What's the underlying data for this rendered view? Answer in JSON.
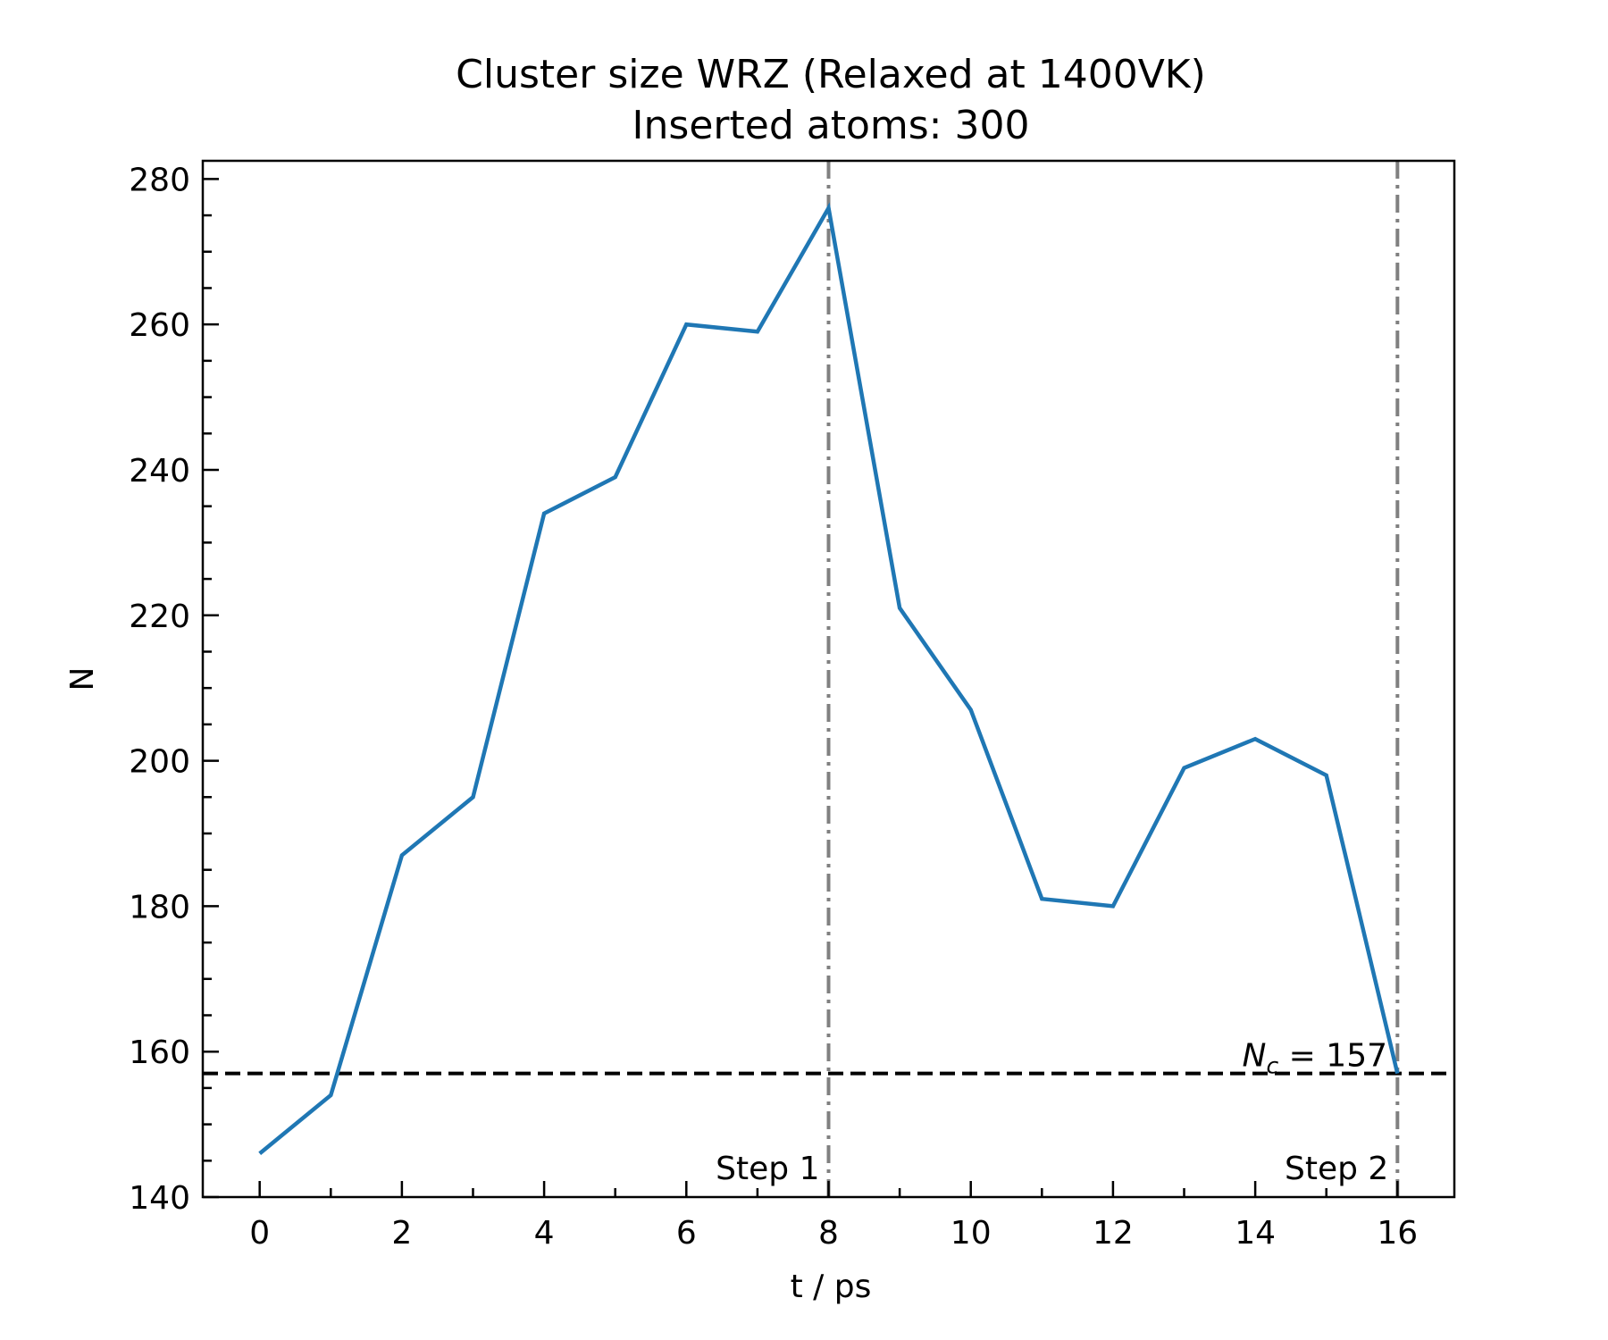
{
  "chart_data": {
    "type": "line",
    "title": "Cluster size WRZ (Relaxed at 1400VK)",
    "subtitle": "Inserted atoms: 300",
    "xlabel": "t / ps",
    "ylabel": "N",
    "xlim": [
      -0.8,
      16.8
    ],
    "ylim": [
      140,
      282.5
    ],
    "xticks": [
      0,
      2,
      4,
      6,
      8,
      10,
      12,
      14,
      16
    ],
    "xticks_minor": [
      1,
      3,
      5,
      7,
      9,
      11,
      13,
      15
    ],
    "yticks": [
      140,
      160,
      180,
      200,
      220,
      240,
      260,
      280
    ],
    "yticks_minor": [
      145,
      150,
      155,
      165,
      170,
      175,
      185,
      190,
      195,
      205,
      210,
      215,
      225,
      230,
      235,
      245,
      250,
      255,
      265,
      270,
      275
    ],
    "grid": false,
    "series": [
      {
        "color": "#1f77b4",
        "x": [
          0,
          1,
          2,
          3,
          4,
          5,
          6,
          7,
          8,
          9,
          10,
          11,
          12,
          13,
          14,
          15,
          16
        ],
        "y": [
          146,
          154,
          187,
          195,
          234,
          239,
          260,
          259,
          276,
          221,
          207,
          181,
          180,
          199,
          203,
          198,
          157
        ]
      }
    ],
    "hlines": [
      {
        "y": 157,
        "style": "dashed",
        "color": "#000000",
        "label": "N_c = 157"
      }
    ],
    "vlines": [
      {
        "x": 8,
        "style": "dashdot",
        "color": "#808080",
        "label": "Step 1"
      },
      {
        "x": 16,
        "style": "dashdot",
        "color": "#808080",
        "label": "Step 2"
      }
    ]
  }
}
